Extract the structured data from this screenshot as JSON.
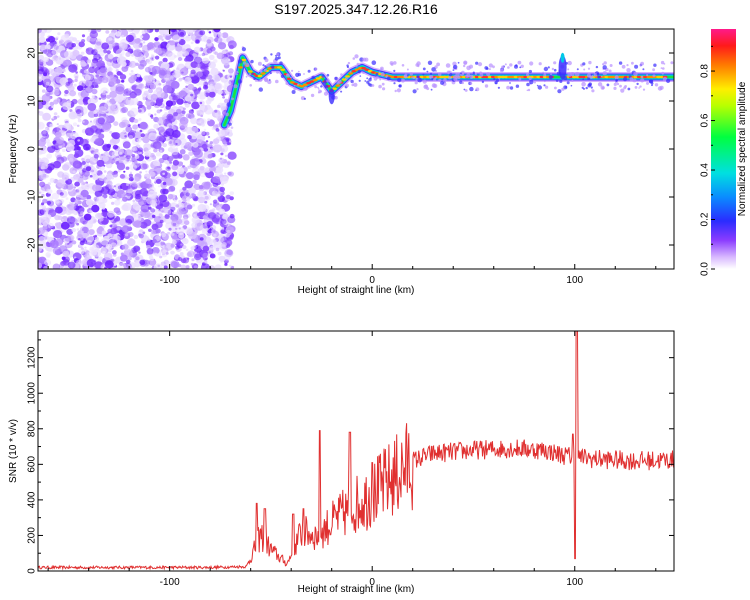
{
  "title": "S197.2025.347.12.26.R16",
  "chart_data": [
    {
      "type": "heatmap",
      "xlabel": "Height of straight line (km)",
      "ylabel": "Frequency (Hz)",
      "xlim": [
        -165,
        149
      ],
      "ylim": [
        -25,
        25
      ],
      "xticks": [
        -100,
        0,
        100
      ],
      "yticks": [
        -20,
        -10,
        0,
        10,
        20
      ],
      "colorbar": {
        "label": "Normalized spectral amplitude",
        "range": [
          0,
          0.97
        ],
        "ticks": [
          0.0,
          0.2,
          0.4,
          0.6,
          0.8
        ],
        "colormap": "rainbow (white-violet-blue-cyan-green-yellow-red-magenta)"
      },
      "noise_region_x": [
        -165,
        -73
      ],
      "ridge_frequency_hz": [
        {
          "x": -73,
          "y": 5
        },
        {
          "x": -70,
          "y": 8
        },
        {
          "x": -66,
          "y": 15
        },
        {
          "x": -64,
          "y": 19
        },
        {
          "x": -60,
          "y": 16
        },
        {
          "x": -56,
          "y": 15
        },
        {
          "x": -50,
          "y": 17
        },
        {
          "x": -45,
          "y": 17
        },
        {
          "x": -40,
          "y": 14
        },
        {
          "x": -35,
          "y": 13
        },
        {
          "x": -30,
          "y": 14
        },
        {
          "x": -25,
          "y": 15
        },
        {
          "x": -20,
          "y": 12
        },
        {
          "x": -15,
          "y": 14
        },
        {
          "x": -10,
          "y": 16
        },
        {
          "x": -5,
          "y": 17
        },
        {
          "x": 0,
          "y": 16
        },
        {
          "x": 10,
          "y": 15
        },
        {
          "x": 50,
          "y": 15
        },
        {
          "x": 85,
          "y": 15
        },
        {
          "x": 95,
          "y": 15
        },
        {
          "x": 100,
          "y": 15
        },
        {
          "x": 149,
          "y": 15
        }
      ]
    },
    {
      "type": "line",
      "xlabel": "Height of straight line (km)",
      "ylabel": "SNR (10 * v/v)",
      "xlim": [
        -165,
        149
      ],
      "ylim": [
        0,
        1350
      ],
      "xticks": [
        -100,
        0,
        100
      ],
      "yticks": [
        0,
        200,
        400,
        600,
        800,
        1000,
        1200
      ],
      "color": "#e03030",
      "series_envelope": [
        {
          "x": -165,
          "y": 20
        },
        {
          "x": -80,
          "y": 20
        },
        {
          "x": -62,
          "y": 25
        },
        {
          "x": -55,
          "y": 200
        },
        {
          "x": -50,
          "y": 120
        },
        {
          "x": -42,
          "y": 40
        },
        {
          "x": -35,
          "y": 220
        },
        {
          "x": -27,
          "y": 200
        },
        {
          "x": -20,
          "y": 270
        },
        {
          "x": -10,
          "y": 360
        },
        {
          "x": 0,
          "y": 430
        },
        {
          "x": 10,
          "y": 520
        },
        {
          "x": 20,
          "y": 620
        },
        {
          "x": 30,
          "y": 660
        },
        {
          "x": 50,
          "y": 680
        },
        {
          "x": 70,
          "y": 690
        },
        {
          "x": 85,
          "y": 680
        },
        {
          "x": 95,
          "y": 650
        },
        {
          "x": 110,
          "y": 630
        },
        {
          "x": 130,
          "y": 620
        },
        {
          "x": 149,
          "y": 625
        }
      ],
      "spikes": [
        {
          "x": -57,
          "y": 380
        },
        {
          "x": -53,
          "y": 350
        },
        {
          "x": -39,
          "y": 320
        },
        {
          "x": -34,
          "y": 350
        },
        {
          "x": -26,
          "y": 790
        },
        {
          "x": -11,
          "y": 780
        },
        {
          "x": 0,
          "y": 610
        },
        {
          "x": 99,
          "y": 770
        },
        {
          "x": 100,
          "y": 70
        },
        {
          "x": 101,
          "y": 1350
        }
      ]
    }
  ]
}
